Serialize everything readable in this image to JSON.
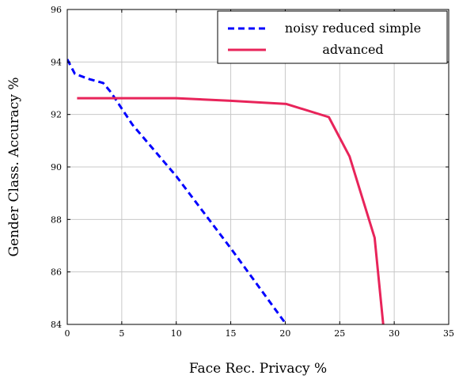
{
  "chart_data": {
    "type": "line",
    "xlabel": "Face Rec. Privacy %",
    "ylabel": "Gender Class. Accuracy %",
    "xlim": [
      0,
      35
    ],
    "ylim": [
      84,
      96
    ],
    "x_ticks": [
      0,
      5,
      10,
      15,
      20,
      25,
      30,
      35
    ],
    "y_ticks": [
      84,
      86,
      88,
      90,
      92,
      94,
      96
    ],
    "grid": true,
    "legend_position": "top-right",
    "series": [
      {
        "name": "noisy reduced simple",
        "color": "#0000ff",
        "style": "dashed",
        "points": [
          [
            0,
            94.1
          ],
          [
            0.7,
            93.55
          ],
          [
            2.0,
            93.35
          ],
          [
            3.3,
            93.2
          ],
          [
            4.0,
            92.85
          ],
          [
            6.0,
            91.6
          ],
          [
            10.0,
            89.65
          ],
          [
            15.0,
            86.9
          ],
          [
            20.0,
            84.05
          ]
        ]
      },
      {
        "name": "advanced",
        "color": "#e8245a",
        "style": "solid",
        "points": [
          [
            0.9,
            92.62
          ],
          [
            5.0,
            92.62
          ],
          [
            10.0,
            92.62
          ],
          [
            15.0,
            92.52
          ],
          [
            20.1,
            92.4
          ],
          [
            24.0,
            91.9
          ],
          [
            25.9,
            90.4
          ],
          [
            28.2,
            87.3
          ],
          [
            29.0,
            83.95
          ]
        ]
      }
    ]
  }
}
